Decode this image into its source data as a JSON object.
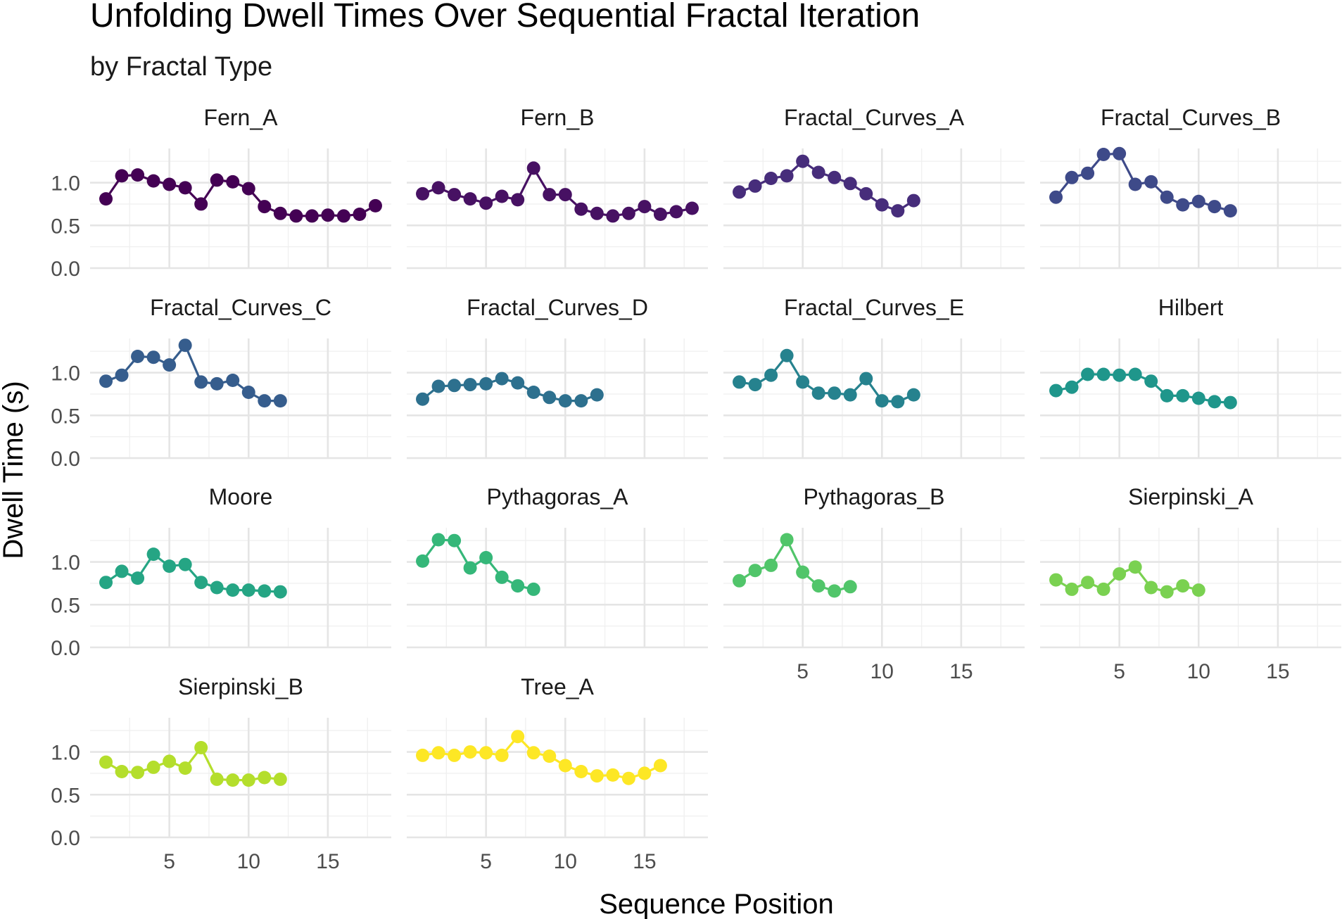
{
  "chart_data": {
    "type": "line",
    "title": "Unfolding Dwell Times Over Sequential Fractal Iteration",
    "subtitle": "by Fractal Type",
    "xlabel": "Sequence Position",
    "ylabel": "Dwell Time (s)",
    "xlim": [
      0,
      19
    ],
    "ylim": [
      0,
      1.4
    ],
    "x_ticks": [
      5,
      10,
      15
    ],
    "y_ticks": [
      0.0,
      0.5,
      1.0
    ],
    "grid": true,
    "legend": "none",
    "facets": [
      {
        "name": "Fern_A",
        "color": "#440154",
        "x": [
          1,
          2,
          3,
          4,
          5,
          6,
          7,
          8,
          9,
          10,
          11,
          12,
          13,
          14,
          15,
          16,
          17,
          18
        ],
        "values": [
          0.81,
          1.08,
          1.09,
          1.02,
          0.98,
          0.94,
          0.75,
          1.03,
          1.01,
          0.93,
          0.72,
          0.64,
          0.61,
          0.61,
          0.62,
          0.61,
          0.63,
          0.73
        ]
      },
      {
        "name": "Fern_B",
        "color": "#471163",
        "x": [
          1,
          2,
          3,
          4,
          5,
          6,
          7,
          8,
          9,
          10,
          11,
          12,
          13,
          14,
          15,
          16,
          17,
          18
        ],
        "values": [
          0.87,
          0.94,
          0.86,
          0.81,
          0.76,
          0.84,
          0.8,
          1.17,
          0.86,
          0.86,
          0.69,
          0.64,
          0.61,
          0.64,
          0.72,
          0.63,
          0.66,
          0.7
        ]
      },
      {
        "name": "Fractal_Curves_A",
        "color": "#472D7B",
        "x": [
          1,
          2,
          3,
          4,
          5,
          6,
          7,
          8,
          9,
          10,
          11,
          12
        ],
        "values": [
          0.89,
          0.96,
          1.05,
          1.08,
          1.25,
          1.12,
          1.06,
          0.99,
          0.87,
          0.74,
          0.67,
          0.79
        ]
      },
      {
        "name": "Fractal_Curves_B",
        "color": "#3E4A89",
        "x": [
          1,
          2,
          3,
          4,
          5,
          6,
          7,
          8,
          9,
          10,
          11,
          12
        ],
        "values": [
          0.83,
          1.06,
          1.11,
          1.33,
          1.34,
          0.98,
          1.01,
          0.83,
          0.74,
          0.78,
          0.72,
          0.67
        ]
      },
      {
        "name": "Fractal_Curves_C",
        "color": "#365D8D",
        "x": [
          1,
          2,
          3,
          4,
          5,
          6,
          7,
          8,
          9,
          10,
          11,
          12
        ],
        "values": [
          0.9,
          0.97,
          1.19,
          1.18,
          1.09,
          1.32,
          0.89,
          0.87,
          0.91,
          0.77,
          0.67,
          0.67
        ]
      },
      {
        "name": "Fractal_Curves_D",
        "color": "#2D708E",
        "x": [
          1,
          2,
          3,
          4,
          5,
          6,
          7,
          8,
          9,
          10,
          11,
          12
        ],
        "values": [
          0.69,
          0.84,
          0.85,
          0.86,
          0.87,
          0.93,
          0.88,
          0.77,
          0.71,
          0.67,
          0.67,
          0.74
        ]
      },
      {
        "name": "Fractal_Curves_E",
        "color": "#26828E",
        "x": [
          1,
          2,
          3,
          4,
          5,
          6,
          7,
          8,
          9,
          10,
          11,
          12
        ],
        "values": [
          0.89,
          0.86,
          0.97,
          1.2,
          0.89,
          0.76,
          0.76,
          0.74,
          0.93,
          0.67,
          0.66,
          0.74
        ]
      },
      {
        "name": "Hilbert",
        "color": "#1F968B",
        "x": [
          1,
          2,
          3,
          4,
          5,
          6,
          7,
          8,
          9,
          10,
          11,
          12
        ],
        "values": [
          0.79,
          0.83,
          0.98,
          0.98,
          0.97,
          0.98,
          0.9,
          0.73,
          0.73,
          0.7,
          0.66,
          0.65
        ]
      },
      {
        "name": "Moore",
        "color": "#25A584",
        "x": [
          1,
          2,
          3,
          4,
          5,
          6,
          7,
          8,
          9,
          10,
          11,
          12
        ],
        "values": [
          0.76,
          0.89,
          0.81,
          1.09,
          0.95,
          0.97,
          0.76,
          0.7,
          0.67,
          0.67,
          0.66,
          0.65
        ]
      },
      {
        "name": "Pythagoras_A",
        "color": "#35B779",
        "x": [
          1,
          2,
          3,
          4,
          5,
          6,
          7,
          8
        ],
        "values": [
          1.01,
          1.26,
          1.25,
          0.93,
          1.05,
          0.82,
          0.72,
          0.68
        ]
      },
      {
        "name": "Pythagoras_B",
        "color": "#51C56A",
        "x": [
          1,
          2,
          3,
          4,
          5,
          6,
          7,
          8
        ],
        "values": [
          0.78,
          0.9,
          0.96,
          1.26,
          0.88,
          0.72,
          0.66,
          0.71
        ]
      },
      {
        "name": "Sierpinski_A",
        "color": "#7AD151",
        "x": [
          1,
          2,
          3,
          4,
          5,
          6,
          7,
          8,
          9,
          10
        ],
        "values": [
          0.79,
          0.68,
          0.76,
          0.68,
          0.86,
          0.94,
          0.7,
          0.65,
          0.72,
          0.67
        ]
      },
      {
        "name": "Sierpinski_B",
        "color": "#B4DE2C",
        "x": [
          1,
          2,
          3,
          4,
          5,
          6,
          7,
          8,
          9,
          10,
          11,
          12
        ],
        "values": [
          0.88,
          0.77,
          0.76,
          0.82,
          0.89,
          0.81,
          1.05,
          0.68,
          0.67,
          0.67,
          0.7,
          0.68
        ]
      },
      {
        "name": "Tree_A",
        "color": "#FDE725",
        "x": [
          1,
          2,
          3,
          4,
          5,
          6,
          7,
          8,
          9,
          10,
          11,
          12,
          13,
          14,
          15,
          16
        ],
        "values": [
          0.96,
          0.99,
          0.96,
          1.0,
          0.99,
          0.96,
          1.18,
          0.99,
          0.95,
          0.84,
          0.77,
          0.72,
          0.73,
          0.69,
          0.75,
          0.84
        ]
      }
    ]
  }
}
